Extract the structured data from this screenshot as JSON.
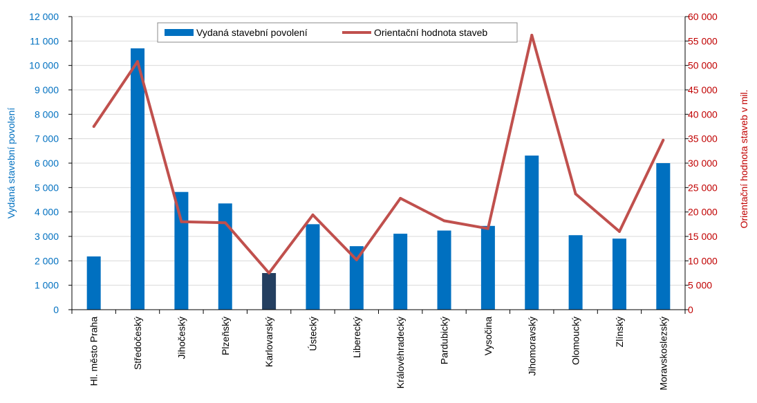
{
  "chart_data": {
    "type": "bar",
    "categories": [
      "Hl. město Praha",
      "Středočeský",
      "Jihočeský",
      "Plzeňský",
      "Karlovarský",
      "Ústecký",
      "Liberecký",
      "Královéhradecký",
      "Pardubický",
      "Vysočina",
      "Jihomoravský",
      "Olomoucký",
      "Zlínský",
      "Moravskoslezský"
    ],
    "series": [
      {
        "name": "Vydaná stavební povolení",
        "chart_type": "bar",
        "axis": "left",
        "color": "#0070c0",
        "highlight": {
          "index": 4,
          "color": "#243f60"
        },
        "values": [
          2180,
          10700,
          4820,
          4350,
          1500,
          3500,
          2600,
          3110,
          3240,
          3430,
          6310,
          3050,
          2910,
          6000
        ]
      },
      {
        "name": "Orientační hodnota staveb",
        "chart_type": "line",
        "axis": "right",
        "color": "#c0504d",
        "values": [
          37500,
          50800,
          18000,
          17800,
          7500,
          19400,
          10200,
          22800,
          18200,
          16600,
          56200,
          23700,
          16000,
          34700
        ]
      }
    ],
    "ylabel_left": "Vydaná stavební povolení",
    "ylabel_right": "Orientační hodnota staveb v mil.",
    "ylim_left": [
      0,
      12000
    ],
    "ylim_right": [
      0,
      60000
    ],
    "yticks_left": [
      "0",
      "1 000",
      "2 000",
      "3 000",
      "4 000",
      "5 000",
      "6 000",
      "7 000",
      "8 000",
      "9 000",
      "10 000",
      "11 000",
      "12 000"
    ],
    "yticks_right": [
      "0",
      "5 000",
      "10 000",
      "15 000",
      "20 000",
      "25 000",
      "30 000",
      "35 000",
      "40 000",
      "45 000",
      "50 000",
      "55 000",
      "60 000"
    ],
    "grid": true,
    "legend_position": "top-center"
  }
}
